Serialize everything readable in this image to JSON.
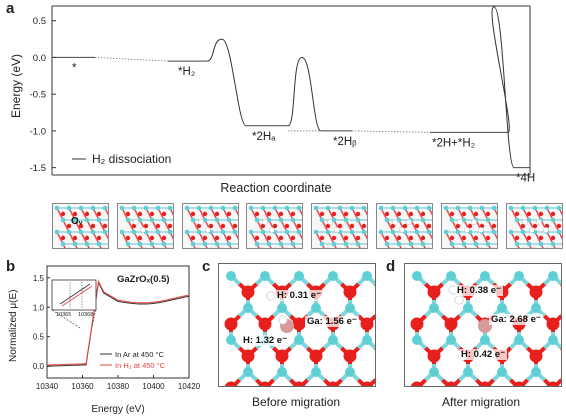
{
  "panel_a": {
    "letter": "a",
    "ylabel": "Energy (eV)",
    "xlabel": "Reaction coordinate",
    "legend": "H₂ dissociation",
    "yticks": [
      "0.5",
      "0.0",
      "-0.5",
      "-1.0",
      "-1.5"
    ],
    "states": [
      {
        "label": "*",
        "energy": 0.0
      },
      {
        "label": "*H₂",
        "energy": -0.05
      },
      {
        "label": "*2Hₐ",
        "energy": -0.93
      },
      {
        "label": "*2Hᵦ",
        "energy": -1.0
      },
      {
        "label": "*2H+*H₂",
        "energy": -1.02
      },
      {
        "label": "*4H",
        "energy": -1.5
      }
    ],
    "ov_label": "Oᵥ"
  },
  "panel_b": {
    "letter": "b",
    "title": "GaZrOₓ(0.5)",
    "ylabel": "Normalized μ(E)",
    "xlabel": "Energy (eV)",
    "xticks": [
      "10340",
      "10360",
      "10380",
      "10400",
      "10420"
    ],
    "yticks": [
      "1.5",
      "1.0",
      "0.5",
      "0.0"
    ],
    "inset_ticks": [
      "10365",
      "10368"
    ],
    "legend": [
      {
        "label": "In Ar at 450 °C",
        "color": "#333333"
      },
      {
        "label": "In H₂ at 450 °C",
        "color": "#e8413e"
      }
    ]
  },
  "panel_c": {
    "letter": "c",
    "caption": "Before migration",
    "labels": [
      "H: 0.31 e⁻",
      "Ga: 1.56 e⁻",
      "H: 1.32 e⁻"
    ]
  },
  "panel_d": {
    "letter": "d",
    "caption": "After migration",
    "labels": [
      "H: 0.38 e⁻",
      "Ga: 2.68 e⁻",
      "H: 0.42 e⁻"
    ]
  },
  "chart_data": [
    {
      "type": "line",
      "title": "",
      "xlabel": "Reaction coordinate",
      "ylabel": "Energy (eV)",
      "ylim": [
        -1.6,
        0.7
      ],
      "series": [
        {
          "name": "H₂ dissociation",
          "states": [
            "*",
            "*H₂",
            "*2Hₐ",
            "*2Hᵦ",
            "*2H+*H₂",
            "*4H"
          ],
          "levels": [
            0.0,
            -0.05,
            -0.93,
            -1.0,
            -1.02,
            -1.5
          ],
          "barriers": [
            0.25,
            0.0,
            0.69
          ]
        }
      ]
    },
    {
      "type": "line",
      "title": "GaZrOₓ(0.5)",
      "xlabel": "Energy (eV)",
      "ylabel": "Normalized μ(E)",
      "xlim": [
        10340,
        10420
      ],
      "ylim": [
        -0.2,
        1.7
      ],
      "series": [
        {
          "name": "In Ar at 450 °C",
          "color": "#333333"
        },
        {
          "name": "In H₂ at 450 °C",
          "color": "#e8413e"
        }
      ]
    }
  ],
  "colors": {
    "zr": "#5fcfd6",
    "o": "#e8201d",
    "h": "#f4f4f4",
    "ga": "#d89a9a"
  }
}
